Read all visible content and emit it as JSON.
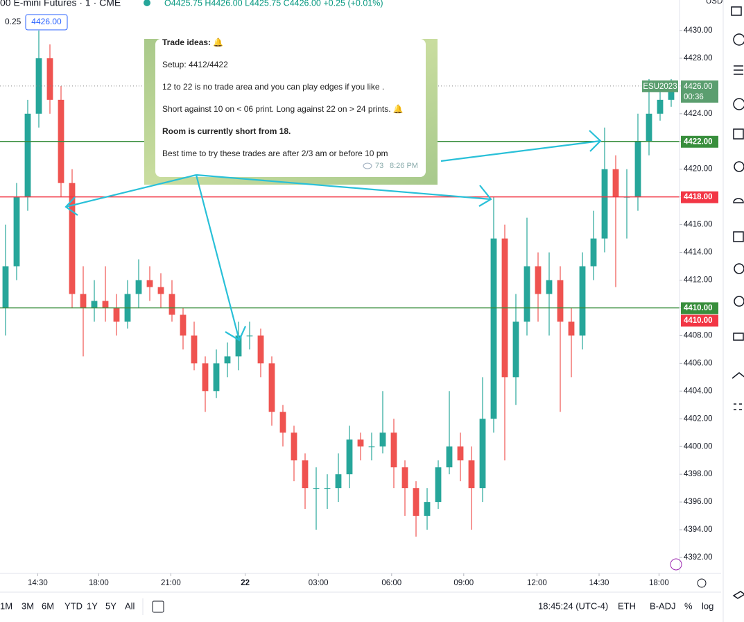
{
  "header": {
    "symbol": "00 E-mini Futures · 1 · CME",
    "ohlc": "O4425.75 H4426.00 L4425.75 C4426.00 +0.25 (+0.01%)",
    "tick_size": "0.25",
    "price_box": "4426.00",
    "currency": "USD"
  },
  "message": {
    "lines": [
      "Trade ideas: 🔔",
      "Setup: 4412/4422",
      "12 to 22 is no trade area and you can play edges if you like .",
      "Short against 10 on < 06 print. Long against 22 on > 24 prints. 🔔",
      "Room is currently short from 18.",
      "Best time to try these trades are after 2/3 am or before 10 pm"
    ],
    "views": "73",
    "time": "8:26 PM"
  },
  "chart_data": {
    "type": "candlestick",
    "up_color": "#26a69a",
    "down_color": "#ef5350",
    "open": [
      4410,
      4413,
      4418,
      4424,
      4428,
      4425,
      4419,
      4411,
      4410,
      4410.5,
      4410,
      4409,
      4411,
      4412,
      4411.5,
      4411,
      4409.5,
      4408,
      4406,
      4404,
      4406,
      4406.5,
      4408,
      4408,
      4406,
      4402.5,
      4401,
      4399,
      4397,
      4397,
      4397,
      4398,
      4400.5,
      4400,
      4400,
      4401,
      4398.5,
      4397,
      4395,
      4396,
      4398.5,
      4400,
      4399,
      4397,
      4402,
      4415,
      4405,
      4409,
      4413,
      4411,
      4412,
      4409,
      4408,
      4413,
      4415,
      4420,
      4418,
      4418,
      4422,
      4424,
      4425
    ],
    "high": [
      4416,
      4419,
      4425,
      4430,
      4429,
      4426,
      4420,
      4413,
      4412,
      4413,
      4411,
      4412,
      4413.5,
      4413,
      4412.5,
      4412,
      4410,
      4409,
      4406.5,
      4407,
      4407.5,
      4409,
      4409,
      4408.5,
      4406.5,
      4403,
      4401.5,
      4399.5,
      4398.5,
      4398,
      4399.5,
      4401.5,
      4401,
      4401,
      4404,
      4402,
      4399,
      4397.5,
      4397,
      4399,
      4404,
      4401,
      4400,
      4405,
      4418,
      4416,
      4411,
      4416.5,
      4414,
      4414,
      4413,
      4410,
      4414,
      4417,
      4423,
      4421,
      4420,
      4424,
      4426.5,
      4426,
      4426.5
    ],
    "low": [
      4408,
      4412,
      4417,
      4423,
      4424,
      4418,
      4410,
      4406.5,
      4409,
      4409,
      4408,
      4408.5,
      4410,
      4410.5,
      4410,
      4409,
      4407,
      4405.5,
      4402.5,
      4403.5,
      4405,
      4405.5,
      4407,
      4405,
      4401.5,
      4400,
      4397.5,
      4395.5,
      4394,
      4395.5,
      4396,
      4397,
      4399,
      4399,
      4399.5,
      4397,
      4395,
      4393.5,
      4394,
      4395.5,
      4398,
      4397.5,
      4394,
      4396,
      4401,
      4399,
      4403,
      4408,
      4409,
      4408,
      4402.5,
      4405,
      4407,
      4412,
      4414,
      4411.5,
      4415,
      4417,
      4421,
      4423.5,
      4424.5
    ],
    "close": [
      4413,
      4418,
      4424,
      4428,
      4425,
      4419,
      4411,
      4410,
      4410.5,
      4410,
      4409,
      4411,
      4412,
      4411.5,
      4411,
      4409.5,
      4408,
      4406,
      4404,
      4406,
      4406.5,
      4408,
      4408,
      4406,
      4402.5,
      4401,
      4399,
      4397,
      4397,
      4397,
      4398,
      4400.5,
      4400,
      4400,
      4401,
      4398.5,
      4397,
      4395,
      4396,
      4398.5,
      4400,
      4399,
      4397,
      4402,
      4415,
      4405,
      4409,
      4413,
      4411,
      4412,
      4409,
      4408,
      4413,
      4415,
      4420,
      4418,
      4418,
      4422,
      4424,
      4425,
      4426
    ],
    "xlim": [
      -0.5,
      60.75
    ],
    "xticks": [
      {
        "value": 2.9,
        "label": "14:30"
      },
      {
        "value": 8.4,
        "label": "18:00"
      },
      {
        "value": 14.9,
        "label": "21:00"
      },
      {
        "value": 21.6,
        "label": "22"
      },
      {
        "value": 28.2,
        "label": "03:00"
      },
      {
        "value": 34.8,
        "label": "06:00"
      },
      {
        "value": 41.3,
        "label": "09:00"
      },
      {
        "value": 47.9,
        "label": "12:00"
      },
      {
        "value": 53.5,
        "label": "14:30"
      },
      {
        "value": 58.9,
        "label": "18:00"
      }
    ],
    "ylim": [
      4390.85,
      4432.2
    ],
    "yticks": [
      {
        "value": 4392,
        "label": "4392.00"
      },
      {
        "value": 4394,
        "label": "4394.00"
      },
      {
        "value": 4396,
        "label": "4396.00"
      },
      {
        "value": 4398,
        "label": "4398.00"
      },
      {
        "value": 4400,
        "label": "4400.00"
      },
      {
        "value": 4402,
        "label": "4402.00"
      },
      {
        "value": 4404,
        "label": "4404.00"
      },
      {
        "value": 4406,
        "label": "4406.00"
      },
      {
        "value": 4408,
        "label": "4408.00"
      },
      {
        "value": 4410,
        "label": "4410.00"
      },
      {
        "value": 4412,
        "label": "4412.00"
      },
      {
        "value": 4414,
        "label": "4414.00"
      },
      {
        "value": 4416,
        "label": "4416.00"
      },
      {
        "value": 4418,
        "label": "4418.00"
      },
      {
        "value": 4420,
        "label": "4420.00"
      },
      {
        "value": 4422,
        "label": "4422.00"
      },
      {
        "value": 4424,
        "label": "4424.00"
      },
      {
        "value": 4426,
        "label": "4426.00"
      },
      {
        "value": 4428,
        "label": "4428.00"
      },
      {
        "value": 4430,
        "label": "4430.00"
      }
    ],
    "price_lines": [
      {
        "value": 4422,
        "label": "4422.00",
        "color": "#388e3c"
      },
      {
        "value": 4418,
        "label": "4418.00",
        "color": "#f23645"
      },
      {
        "value": 4410,
        "label": "4410.00",
        "color": "#388e3c"
      },
      {
        "value": 4410,
        "label": "4410.00",
        "color": "#f23645"
      }
    ],
    "last_price": {
      "value": 4426,
      "label": "4426.00",
      "countdown": "00:36",
      "symbol": "ESU2023",
      "color": "#5b9e6f"
    }
  },
  "toolbar": {
    "ranges": [
      "1M",
      "3M",
      "6M",
      "YTD",
      "1Y",
      "5Y",
      "All"
    ],
    "clock": "18:45:24 (UTC-4)",
    "options": [
      "ETH",
      "B-ADJ",
      "%",
      "log"
    ]
  }
}
